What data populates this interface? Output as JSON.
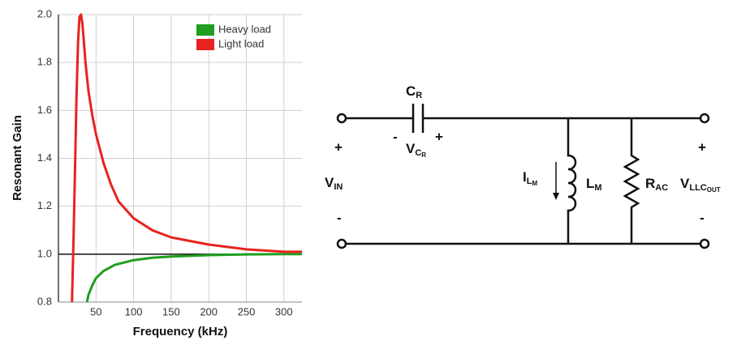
{
  "chart_data": {
    "type": "line",
    "xlabel": "Frequency (kHz)",
    "ylabel": "Resonant Gain",
    "xlim": [
      0,
      324
    ],
    "ylim": [
      0.8,
      2.0
    ],
    "xticks": [
      50,
      100,
      150,
      200,
      250,
      300
    ],
    "yticks": [
      {
        "value": 0.8,
        "label": "0.8"
      },
      {
        "value": 1.0,
        "label": "1.0"
      },
      {
        "value": 1.2,
        "label": "1.2"
      },
      {
        "value": 1.4,
        "label": "1.4"
      },
      {
        "value": 1.6,
        "label": "1.6"
      },
      {
        "value": 1.8,
        "label": "1.8"
      },
      {
        "value": 2.0,
        "label": "2.0"
      }
    ],
    "grid": true,
    "legend": "upper right",
    "reference_line": 1.0,
    "series": [
      {
        "name": "Heavy load",
        "color": "#1f9e1f",
        "x": [
          38,
          40,
          45,
          50,
          60,
          75,
          100,
          125,
          150,
          200,
          250,
          300,
          324
        ],
        "values": [
          0.8,
          0.83,
          0.87,
          0.9,
          0.93,
          0.955,
          0.975,
          0.985,
          0.99,
          0.996,
          0.999,
          1.0,
          1.0
        ]
      },
      {
        "name": "Light load",
        "color": "#e8231f",
        "x": [
          18,
          20,
          22,
          24,
          26,
          28,
          30,
          32,
          34,
          36,
          40,
          45,
          50,
          60,
          70,
          80,
          100,
          125,
          150,
          200,
          250,
          300,
          324
        ],
        "values": [
          0.8,
          1.05,
          1.35,
          1.65,
          1.88,
          1.99,
          2.0,
          1.96,
          1.88,
          1.8,
          1.68,
          1.58,
          1.5,
          1.38,
          1.29,
          1.22,
          1.15,
          1.1,
          1.07,
          1.04,
          1.02,
          1.01,
          1.01
        ]
      }
    ]
  },
  "diagram": {
    "cr": {
      "main": "C",
      "sub": "R"
    },
    "vcr": {
      "minus": "-",
      "main": "V",
      "sub": "C",
      "subsub": "R",
      "plus": "+"
    },
    "vin": {
      "plus": "+",
      "main": "V",
      "sub": "IN",
      "minus": "-"
    },
    "ilm": {
      "main": "I",
      "sub": "L",
      "subsub": "M"
    },
    "lm": {
      "main": "L",
      "sub": "M"
    },
    "rac": {
      "main": "R",
      "sub": "AC"
    },
    "vout": {
      "plus": "+",
      "main": "V",
      "sub": "LLC",
      "subsub": "OUT",
      "minus": "-"
    }
  }
}
